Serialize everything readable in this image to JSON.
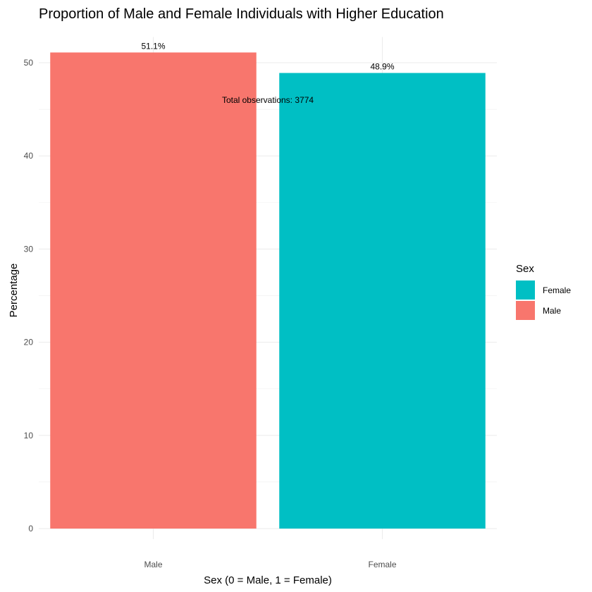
{
  "chart_data": {
    "type": "bar",
    "title": "Proportion of Male and Female Individuals with Higher Education",
    "xlabel": "Sex (0 = Male, 1 = Female)",
    "ylabel": "Percentage",
    "categories": [
      "Male",
      "Female"
    ],
    "values": [
      51.1,
      48.9
    ],
    "data_labels": [
      "51.1%",
      "48.9%"
    ],
    "bar_colors": [
      "#F8766D",
      "#00BFC4"
    ],
    "ylim": [
      0,
      52
    ],
    "yticks": [
      0,
      10,
      20,
      30,
      40,
      50
    ],
    "ytick_labels": [
      "0",
      "10",
      "20",
      "30",
      "40",
      "50"
    ],
    "grid": true,
    "annotation": {
      "text": "Total observations: 3774",
      "x_category_position": 1.5,
      "y": 46
    },
    "legend": {
      "title": "Sex",
      "placement": "right",
      "entries": [
        {
          "label": "Female",
          "color": "#00BFC4"
        },
        {
          "label": "Male",
          "color": "#F8766D"
        }
      ]
    }
  }
}
